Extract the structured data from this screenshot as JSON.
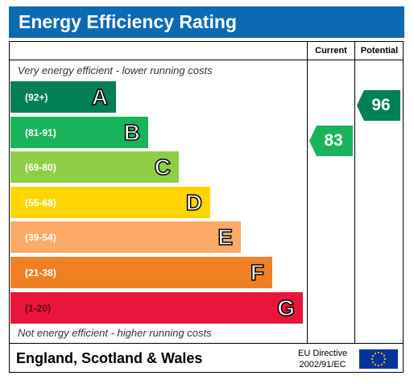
{
  "title": "Energy Efficiency Rating",
  "columns": {
    "current": "Current",
    "potential": "Potential"
  },
  "top_note": "Very energy efficient - lower running costs",
  "bottom_note": "Not energy efficient - higher running costs",
  "footer": {
    "region": "England, Scotland & Wales",
    "directive_line1": "EU Directive",
    "directive_line2": "2002/91/EC"
  },
  "colors": {
    "header": "#0c6ab3",
    "A": "#008054",
    "B": "#19b459",
    "C": "#8dce46",
    "D": "#ffd500",
    "E": "#fcaa65",
    "F": "#ef8023",
    "G": "#e9153b"
  },
  "chart_data": {
    "type": "bar",
    "bands": [
      {
        "letter": "A",
        "range": "(92+)",
        "color": "#008054"
      },
      {
        "letter": "B",
        "range": "(81-91)",
        "color": "#19b459"
      },
      {
        "letter": "C",
        "range": "(69-80)",
        "color": "#8dce46"
      },
      {
        "letter": "D",
        "range": "(55-68)",
        "color": "#ffd500"
      },
      {
        "letter": "E",
        "range": "(39-54)",
        "color": "#fcaa65"
      },
      {
        "letter": "F",
        "range": "(21-38)",
        "color": "#ef8023"
      },
      {
        "letter": "G",
        "range": "(1-20)",
        "color": "#e9153b"
      }
    ],
    "current": {
      "value": 83,
      "band": "B",
      "color": "#19b459"
    },
    "potential": {
      "value": 96,
      "band": "A",
      "color": "#008054"
    }
  }
}
